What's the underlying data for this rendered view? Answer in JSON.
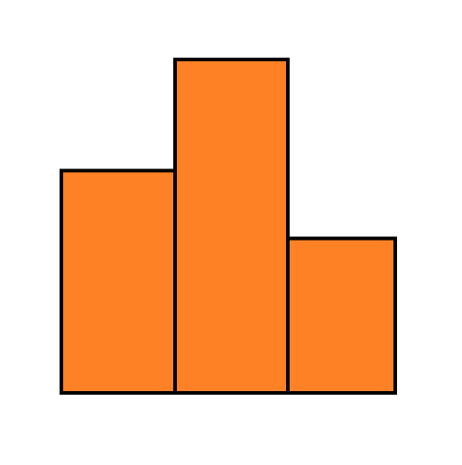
{
  "chart_data": {
    "type": "bar",
    "categories": [
      "",
      "",
      ""
    ],
    "values": [
      2,
      3,
      1.39
    ],
    "ylim": [
      0,
      3
    ],
    "grid": false,
    "legend": "none",
    "colors": {
      "bar_fill": "#FF8125",
      "bar_stroke": "#000000"
    }
  }
}
